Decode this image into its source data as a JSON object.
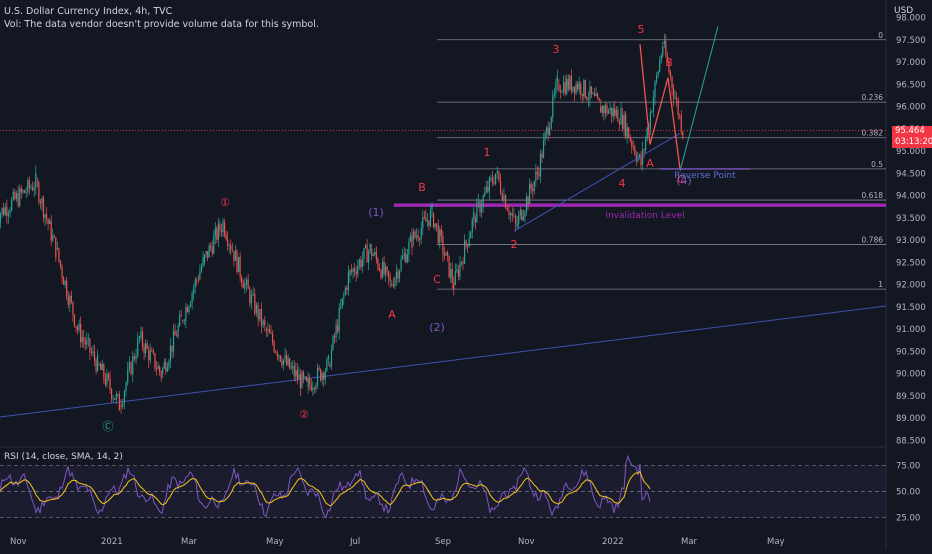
{
  "header": {
    "title": "U.S. Dollar Currency Index, 4h, TVC",
    "volume_note": "Vol: The data vendor doesn't provide volume data for this symbol."
  },
  "currency_label": "USD",
  "price_badge": {
    "price": "95.464",
    "countdown": "03:13:20"
  },
  "chart_data": {
    "type": "line",
    "title": "U.S. Dollar Currency Index, 4h, TVC",
    "ylim": [
      88.5,
      98.0
    ],
    "y_ticks": [
      "98.000",
      "97.500",
      "97.000",
      "96.500",
      "96.000",
      "95.500",
      "95.000",
      "94.500",
      "94.000",
      "93.500",
      "93.000",
      "92.500",
      "92.000",
      "91.500",
      "91.000",
      "90.500",
      "90.000",
      "89.500",
      "89.000",
      "88.500"
    ],
    "x_ticks": [
      "Nov",
      "2021",
      "Mar",
      "May",
      "Jul",
      "Sep",
      "Nov",
      "2022",
      "Mar",
      "May"
    ],
    "series": [
      {
        "path": [
          [
            "Oct 2020",
            93.5
          ],
          [
            "Nov 2020",
            94.3
          ],
          [
            "Nov 2020",
            92.8
          ],
          [
            "Dec 2020",
            91.0
          ],
          [
            "Dec 2020",
            90.2
          ],
          [
            "Jan 2021",
            89.3
          ],
          [
            "Jan 2021",
            90.8
          ],
          [
            "Feb 2021",
            90.0
          ],
          [
            "Feb 2021",
            91.2
          ],
          [
            "Mar 2021",
            92.5
          ],
          [
            "Mar 2021",
            93.4
          ],
          [
            "Apr 2021",
            92.0
          ],
          [
            "Apr 2021",
            91.0
          ],
          [
            "May 2021",
            90.2
          ],
          [
            "May 2021",
            89.7
          ],
          [
            "Jun 2021",
            90.2
          ],
          [
            "Jun 2021",
            92.2
          ],
          [
            "Jul 2021",
            92.8
          ],
          [
            "Jul 2021",
            92.0
          ],
          [
            "Aug 2021",
            93.0
          ],
          [
            "Aug 2021",
            93.6
          ],
          [
            "Sep 2021",
            92.0
          ],
          [
            "Sep 2021",
            93.5
          ],
          [
            "Oct 2021",
            94.5
          ],
          [
            "Oct 2021",
            93.3
          ],
          [
            "Nov 2021",
            94.5
          ],
          [
            "Nov 2021",
            96.5
          ],
          [
            "Dec 2021",
            96.5
          ],
          [
            "Dec 2021",
            96.0
          ],
          [
            "Jan 2022",
            95.8
          ],
          [
            "Jan 2022",
            94.7
          ],
          [
            "Feb 2022",
            97.4
          ],
          [
            "Feb 2022",
            95.464
          ]
        ]
      }
    ],
    "fib_levels": [
      {
        "label": "0",
        "price": 97.5
      },
      {
        "label": "0.236",
        "price": 96.1
      },
      {
        "label": "0.382",
        "price": 95.3
      },
      {
        "label": "0.5",
        "price": 94.6
      },
      {
        "label": "0.618",
        "price": 93.9
      },
      {
        "label": "0.786",
        "price": 92.9
      },
      {
        "label": "1",
        "price": 91.9
      }
    ],
    "wave_labels": [
      {
        "text": "①",
        "color": "#f23645",
        "date": "Mar 2021",
        "price": 93.9
      },
      {
        "text": "②",
        "color": "#f23645",
        "date": "May 2021",
        "price": 89.4
      },
      {
        "text": "Ⓒ",
        "color": "#26a69a",
        "date": "Jan 2021",
        "price": 89.0
      },
      {
        "text": "(1)",
        "color": "#7e57c2",
        "date": "Jul 2021",
        "price": 93.7
      },
      {
        "text": "(2)",
        "color": "#7e57c2",
        "date": "Sep 2021",
        "price": 91.1
      },
      {
        "text": "(4)",
        "color": "#7e57c2",
        "date": "Feb 2022",
        "price": 94.4
      },
      {
        "text": "A",
        "color": "#f23645",
        "date": "Jul 2021",
        "price": 91.3
      },
      {
        "text": "B",
        "color": "#f23645",
        "date": "Aug 2021",
        "price": 94.2
      },
      {
        "text": "C",
        "color": "#f23645",
        "date": "Sep 2021",
        "price": 91.9
      },
      {
        "text": "1",
        "color": "#f23645",
        "date": "Oct 2021",
        "price": 95.0
      },
      {
        "text": "2",
        "color": "#f23645",
        "date": "Oct 2021",
        "price": 92.9
      },
      {
        "text": "3",
        "color": "#f23645",
        "date": "Nov 2021",
        "price": 97.4
      },
      {
        "text": "4",
        "color": "#f23645",
        "date": "Jan 2022",
        "price": 94.3
      },
      {
        "text": "5",
        "color": "#f23645",
        "date": "Feb 2022",
        "price": 97.9
      },
      {
        "text": "A",
        "color": "#f23645",
        "date": "Feb 2022",
        "price": 94.75
      },
      {
        "text": "B",
        "color": "#f23645",
        "date": "Feb 2022",
        "price": 96.9
      },
      {
        "text": "C",
        "color": "#f23645",
        "date": "Feb 2022",
        "price": 94.4
      }
    ],
    "annotations": [
      {
        "text": "Invalidation Level",
        "color": "#9c27b0",
        "price": 93.8
      },
      {
        "text": "Reverse Point",
        "color": "#5b6fd6",
        "price": 94.6
      }
    ],
    "colors": {
      "up": "#26a69a",
      "down": "#ef5350",
      "fib": "#b2b5be",
      "invalidation": "#9c27b0",
      "trend": "#3f51b5",
      "rsi": "#7e57c2",
      "rsi_ma": "#f5c518",
      "price_line": "#f23645"
    }
  },
  "rsi": {
    "label": "RSI (14, close, SMA, 14, 2)",
    "levels": [
      75,
      50,
      25
    ],
    "level_labels": [
      "75.00",
      "50.00",
      "25.00"
    ],
    "ylim": [
      15,
      85
    ]
  }
}
